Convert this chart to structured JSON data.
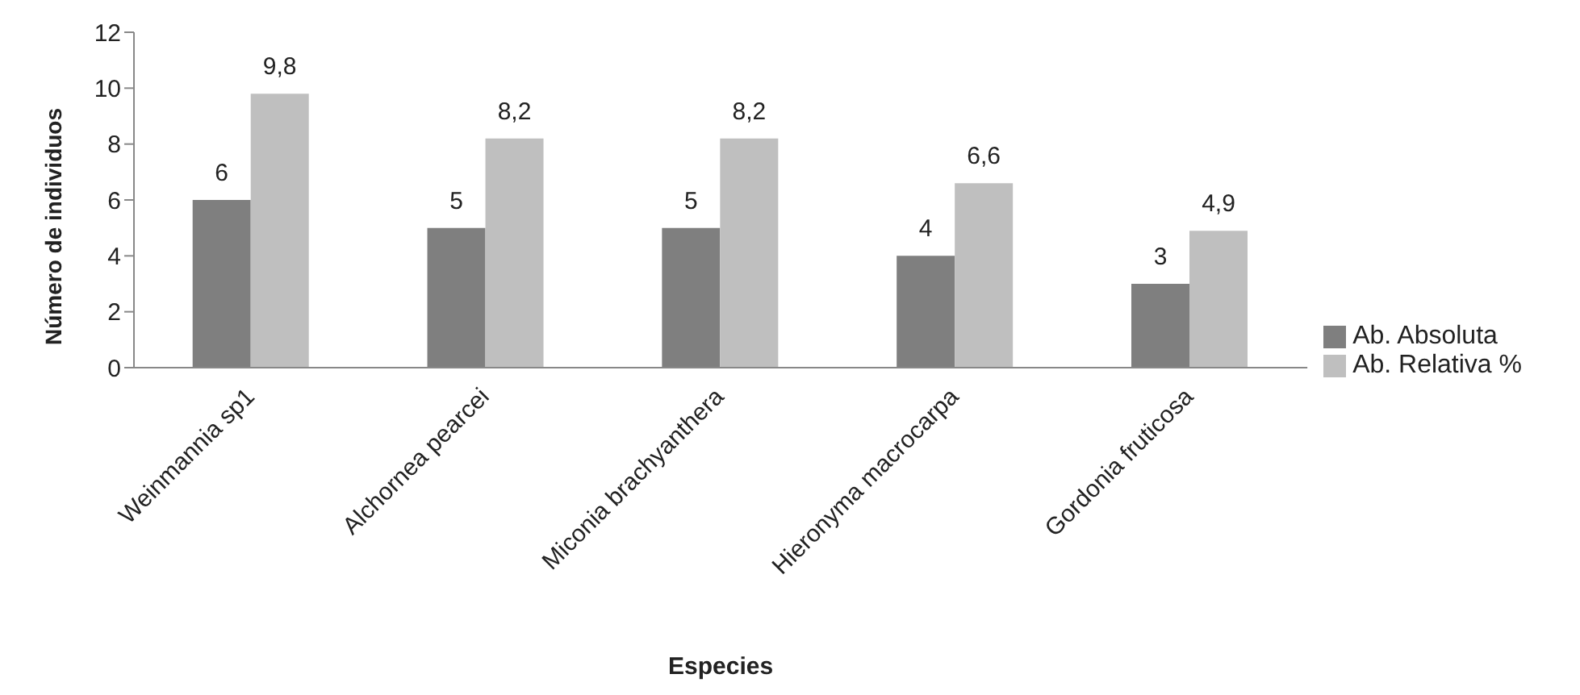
{
  "chart_data": {
    "type": "bar",
    "xlabel": "Especies",
    "ylabel": "Número de individuos",
    "categories": [
      "Weinmannia sp1",
      "Alchornea pearcei",
      "Miconia brachyanthera",
      "Hieronyma macrocarpa",
      "Gordonia fruticosa"
    ],
    "series": [
      {
        "name": "Ab. Absoluta",
        "color": "#7f7f7f",
        "values": [
          6,
          5,
          5,
          4,
          3
        ],
        "value_labels": [
          "6",
          "5",
          "5",
          "4",
          "3"
        ]
      },
      {
        "name": "Ab. Relativa %",
        "color": "#bfbfbf",
        "values": [
          9.8,
          8.2,
          8.2,
          6.6,
          4.9
        ],
        "value_labels": [
          "9,8",
          "8,2",
          "8,2",
          "6,6",
          "4,9"
        ]
      }
    ],
    "ylim": [
      0,
      12
    ],
    "yticks": [
      0,
      2,
      4,
      6,
      8,
      10,
      12
    ],
    "grid": false,
    "legend": "right"
  }
}
